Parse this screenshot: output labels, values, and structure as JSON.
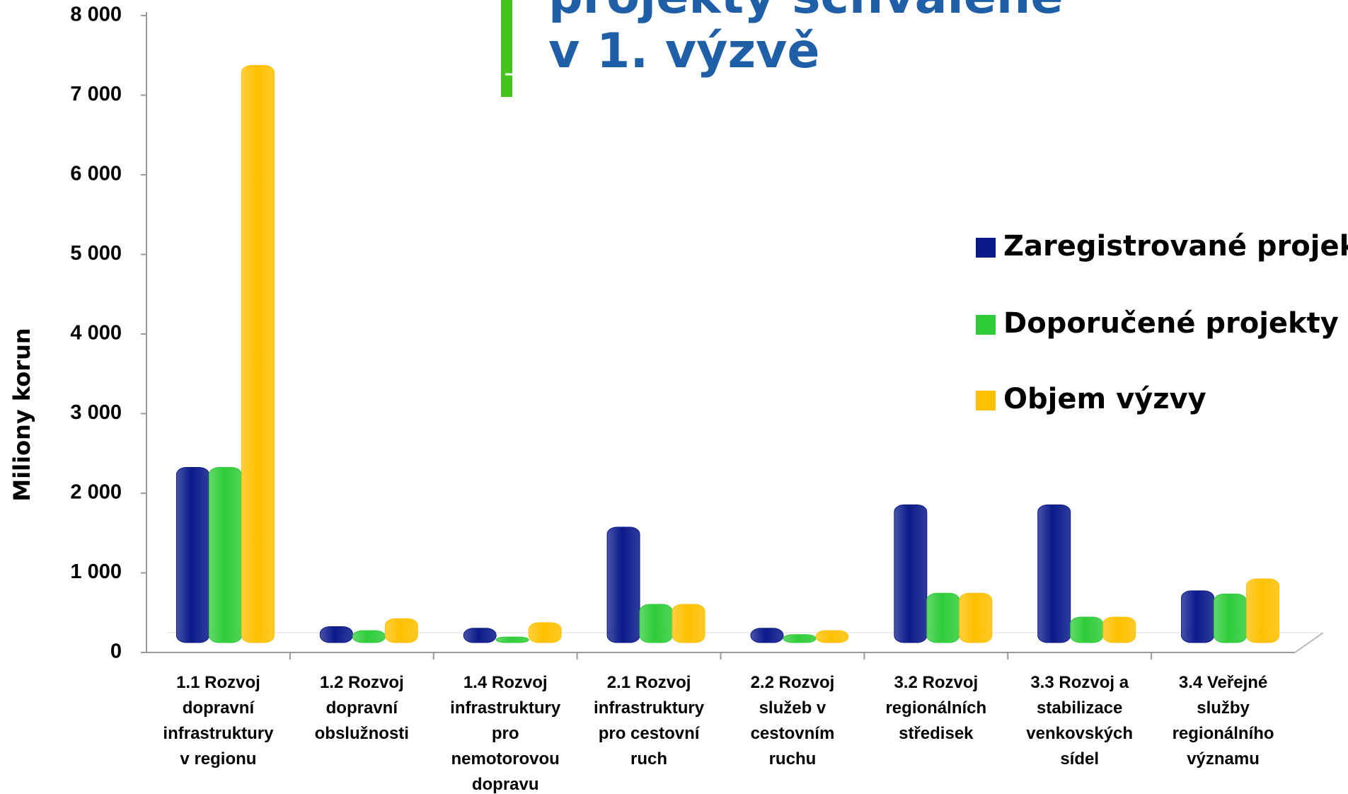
{
  "chart_data": {
    "type": "bar",
    "title": [
      "projekty schválené",
      "v 1. výzvě"
    ],
    "y_label": "Miliony korun",
    "categories": [
      "1.1 Rozvoj\ndopravní\ninfrastruktury\nv regionu",
      "1.2 Rozvoj\ndopravní\nobslužnosti",
      "1.4 Rozvoj\ninfrastruktury\npro\nnemotorovou\ndopravu",
      "2.1 Rozvoj\ninfrastruktury\npro cestovní\nruch",
      "2.2 Rozvoj\nslužeb v\ncestovním\nruchu",
      "3.2 Rozvoj\nregionálních\nstředisek",
      "3.3 Rozvoj a\nstabilizace\nvenkovských\nsídel",
      "3.4 Veřejné\nslužby\nregionálního\nvýznamu"
    ],
    "series": [
      {
        "name": "Zaregistrované projekty",
        "color": "#0b1a8a",
        "values": [
          2200,
          200,
          180,
          1450,
          180,
          1730,
          1730,
          650
        ]
      },
      {
        "name": "Doporučené projekty",
        "color": "#2fcc3a",
        "values": [
          2200,
          150,
          70,
          480,
          100,
          620,
          320,
          610
        ]
      },
      {
        "name": "Objem výzvy",
        "color": "#ffc000",
        "values": [
          7250,
          300,
          250,
          480,
          150,
          620,
          320,
          800
        ]
      }
    ],
    "ylim": [
      0,
      8000
    ],
    "yticks": [
      0,
      {
        "value": 1000,
        "label": "1 000"
      },
      {
        "value": 2000,
        "label": "2 000"
      },
      {
        "value": 3000,
        "label": "3 000"
      },
      {
        "value": 4000,
        "label": "4 000"
      },
      {
        "value": 5000,
        "label": "5 000"
      },
      {
        "value": 6000,
        "label": "6 000"
      },
      {
        "value": 7000,
        "label": "7 000"
      },
      {
        "value": 8000,
        "label": "8 000"
      }
    ],
    "legend": "right"
  }
}
